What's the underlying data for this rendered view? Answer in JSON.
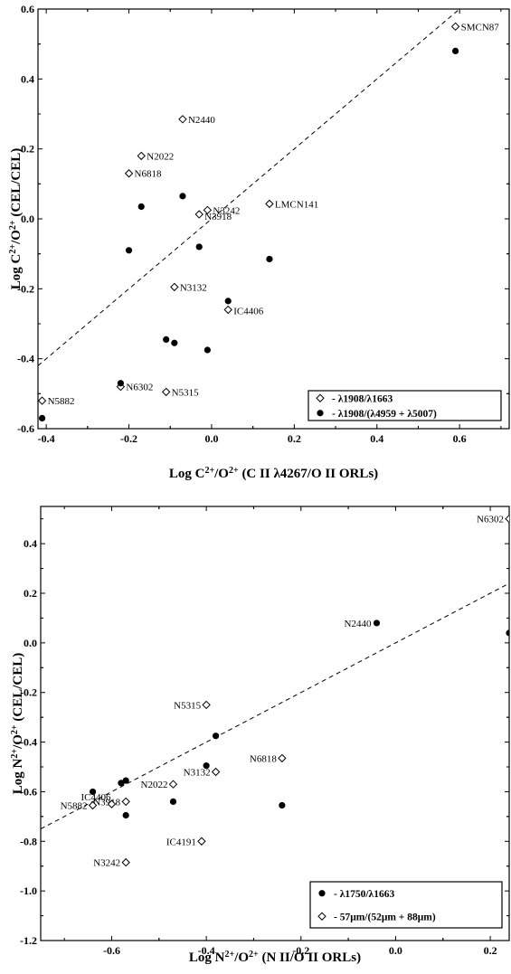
{
  "chart_data": [
    {
      "type": "scatter",
      "xlabel_parts": [
        "Log C",
        "2+",
        "/O",
        "2+",
        " (C II λ4267/O II ORLs)"
      ],
      "ylabel_parts": [
        "Log C",
        "2+",
        "/O",
        "2+",
        " (CEL/CEL)"
      ],
      "xlim": [
        -0.42,
        0.72
      ],
      "ylim": [
        -0.6,
        0.6
      ],
      "xticks": [
        -0.4,
        -0.2,
        0.0,
        0.2,
        0.4,
        0.6
      ],
      "yticks": [
        -0.6,
        -0.4,
        -0.2,
        0.0,
        0.2,
        0.4,
        0.6
      ],
      "xtick_labels": [
        "-0.4",
        "-0.2",
        "0.0",
        "0.2",
        "0.4",
        "0.6"
      ],
      "ytick_labels": [
        "-0.6",
        "-0.4",
        "-0.2",
        "0.0",
        "0.2",
        "0.4",
        "0.6"
      ],
      "diagonal": [
        [
          -0.42,
          -0.42
        ],
        [
          0.6,
          0.6
        ]
      ],
      "legend_position": "bottom-right",
      "series": [
        {
          "name": "- λ1908/λ1663",
          "marker": "diamond-open",
          "points": [
            {
              "x": 0.59,
              "y": 0.55,
              "label": "SMCN87"
            },
            {
              "x": -0.07,
              "y": 0.285,
              "label": "N2440"
            },
            {
              "x": -0.17,
              "y": 0.18,
              "label": "N2022"
            },
            {
              "x": -0.2,
              "y": 0.13,
              "label": "N6818"
            },
            {
              "x": -0.01,
              "y": 0.025,
              "label": "N3242"
            },
            {
              "x": -0.03,
              "y": 0.013,
              "label": "N3918"
            },
            {
              "x": 0.14,
              "y": 0.043,
              "label": "LMCN141"
            },
            {
              "x": -0.09,
              "y": -0.195,
              "label": "N3132"
            },
            {
              "x": 0.04,
              "y": -0.26,
              "label": "IC4406"
            },
            {
              "x": -0.41,
              "y": -0.52,
              "label": "N5882"
            },
            {
              "x": -0.22,
              "y": -0.48,
              "label": "N6302"
            },
            {
              "x": -0.11,
              "y": -0.495,
              "label": "N5315"
            }
          ]
        },
        {
          "name": "- λ1908/(λ4959 + λ5007)",
          "marker": "circle-filled",
          "points": [
            {
              "x": 0.59,
              "y": 0.48
            },
            {
              "x": -0.07,
              "y": 0.065
            },
            {
              "x": -0.17,
              "y": 0.035
            },
            {
              "x": -0.2,
              "y": -0.09
            },
            {
              "x": -0.03,
              "y": -0.08
            },
            {
              "x": 0.14,
              "y": -0.115
            },
            {
              "x": 0.04,
              "y": -0.235
            },
            {
              "x": -0.11,
              "y": -0.345
            },
            {
              "x": -0.09,
              "y": -0.355
            },
            {
              "x": -0.01,
              "y": -0.375
            },
            {
              "x": -0.22,
              "y": -0.47
            },
            {
              "x": -0.41,
              "y": -0.57
            }
          ]
        }
      ]
    },
    {
      "type": "scatter",
      "xlabel_parts": [
        "Log N",
        "2+",
        "/O",
        "2+",
        " (N II/O II ORLs)"
      ],
      "ylabel_parts": [
        "Log N",
        "2+",
        "/O",
        "2+",
        " (CEL/CEL)"
      ],
      "xlim": [
        -0.75,
        0.24
      ],
      "ylim": [
        -1.2,
        0.55
      ],
      "xticks": [
        -0.6,
        -0.4,
        -0.2,
        0.0,
        0.2
      ],
      "yticks": [
        -1.2,
        -1.0,
        -0.8,
        -0.6,
        -0.4,
        -0.2,
        0.0,
        0.2,
        0.4
      ],
      "xtick_labels": [
        "-0.6",
        "-0.4",
        "-0.2",
        "0.0",
        "0.2"
      ],
      "ytick_labels": [
        "-1.2",
        "-1.0",
        "-0.8",
        "-0.6",
        "-0.4",
        "-0.2",
        "0.0",
        "0.2",
        "0.4"
      ],
      "diagonal": [
        [
          -0.75,
          -0.75
        ],
        [
          0.24,
          0.24
        ]
      ],
      "legend_position": "bottom-right",
      "series": [
        {
          "name": "- λ1750/λ1663",
          "marker": "circle-filled",
          "points": [
            {
              "x": -0.04,
              "y": 0.08,
              "label": "N2440"
            },
            {
              "x": 0.24,
              "y": 0.04
            },
            {
              "x": -0.38,
              "y": -0.375
            },
            {
              "x": -0.4,
              "y": -0.495
            },
            {
              "x": -0.58,
              "y": -0.565
            },
            {
              "x": -0.57,
              "y": -0.555
            },
            {
              "x": -0.64,
              "y": -0.6
            },
            {
              "x": -0.47,
              "y": -0.64
            },
            {
              "x": -0.24,
              "y": -0.655
            },
            {
              "x": -0.57,
              "y": -0.695
            }
          ]
        },
        {
          "name": "- 57μm/(52μm + 88μm)",
          "marker": "diamond-open",
          "points": [
            {
              "x": 0.24,
              "y": 0.5,
              "label": "N6302"
            },
            {
              "x": -0.4,
              "y": -0.25,
              "label": "N5315"
            },
            {
              "x": -0.24,
              "y": -0.465,
              "label": "N6818"
            },
            {
              "x": -0.38,
              "y": -0.52,
              "label": "N3132"
            },
            {
              "x": -0.47,
              "y": -0.57,
              "label": "N2022"
            },
            {
              "x": -0.57,
              "y": -0.64,
              "label": "N3918"
            },
            {
              "x": -0.64,
              "y": -0.655,
              "label": "N5882"
            },
            {
              "x": -0.6,
              "y": -0.65,
              "label": "IC4406"
            },
            {
              "x": -0.41,
              "y": -0.8,
              "label": "IC4191"
            },
            {
              "x": -0.57,
              "y": -0.885,
              "label": "N3242"
            }
          ]
        }
      ]
    }
  ]
}
